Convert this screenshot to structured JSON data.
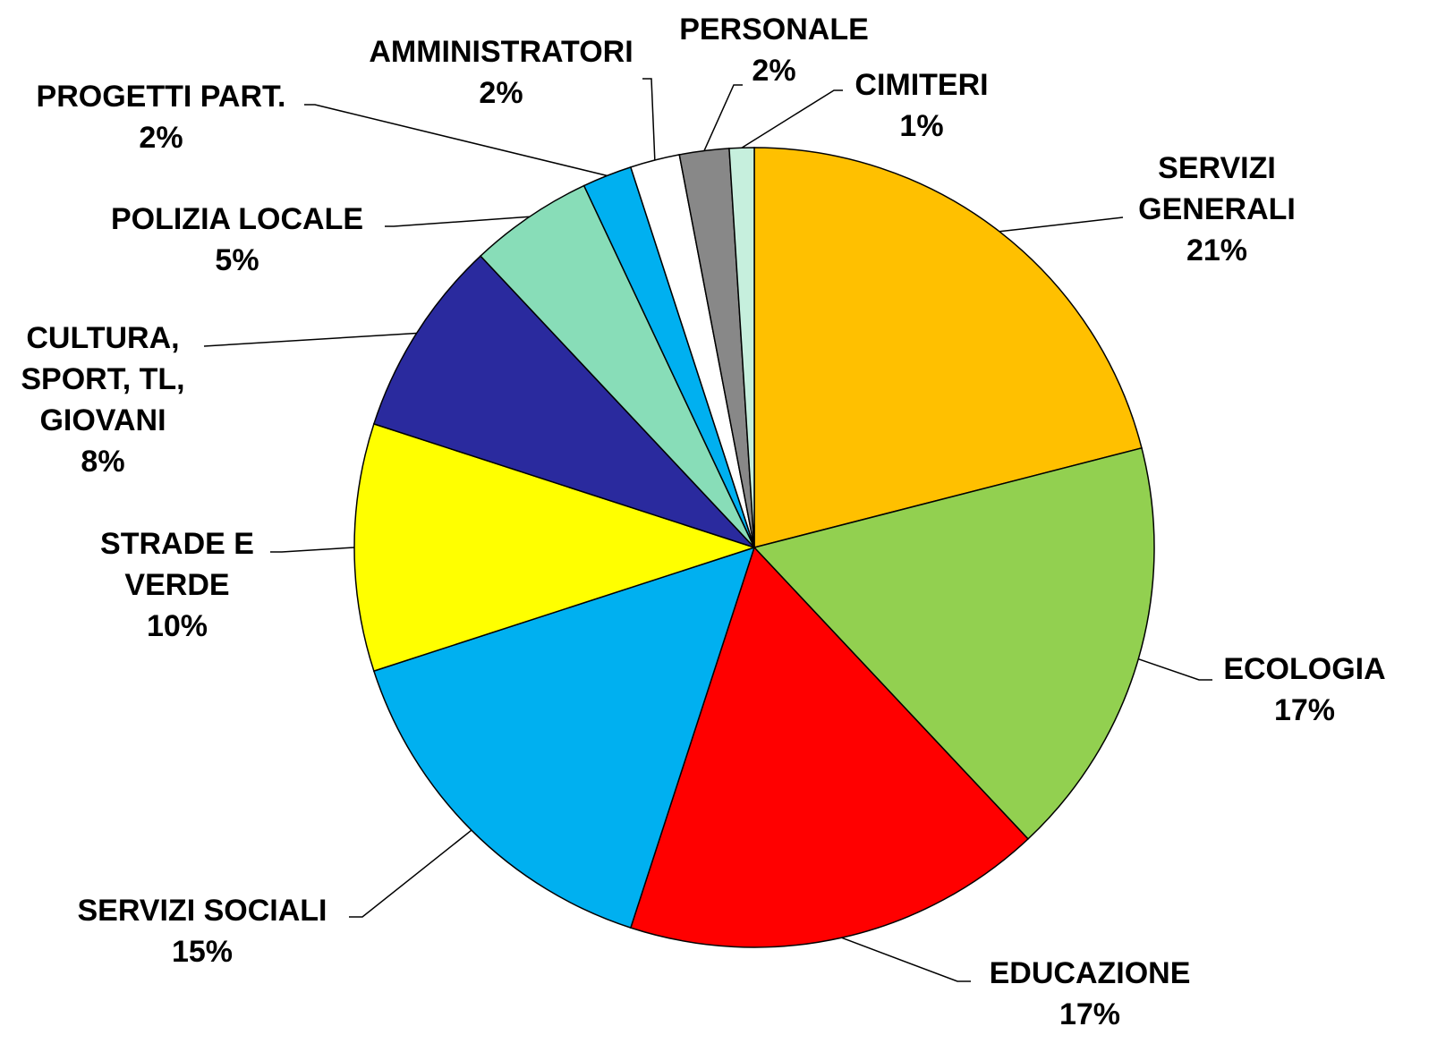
{
  "chart_data": {
    "type": "pie",
    "categories": [
      "SERVIZI GENERALI",
      "ECOLOGIA",
      "EDUCAZIONE",
      "SERVIZI SOCIALI",
      "STRADE E VERDE",
      "CULTURA, SPORT, TL, GIOVANI",
      "POLIZIA LOCALE",
      "PROGETTI PART.",
      "AMMINISTRATORI",
      "PERSONALE",
      "CIMITERI"
    ],
    "values": [
      21,
      17,
      17,
      15,
      10,
      8,
      5,
      2,
      2,
      2,
      1
    ],
    "value_labels": [
      "21%",
      "17%",
      "17%",
      "15%",
      "10%",
      "8%",
      "5%",
      "2%",
      "2%",
      "2%",
      "1%"
    ],
    "colors": [
      "#FFC000",
      "#92D050",
      "#FF0000",
      "#00B0F0",
      "#FFFF00",
      "#2A2A9E",
      "#88DDB8",
      "#00B0F0",
      "#FFFFFF",
      "#888888",
      "#C6EFDD"
    ]
  }
}
